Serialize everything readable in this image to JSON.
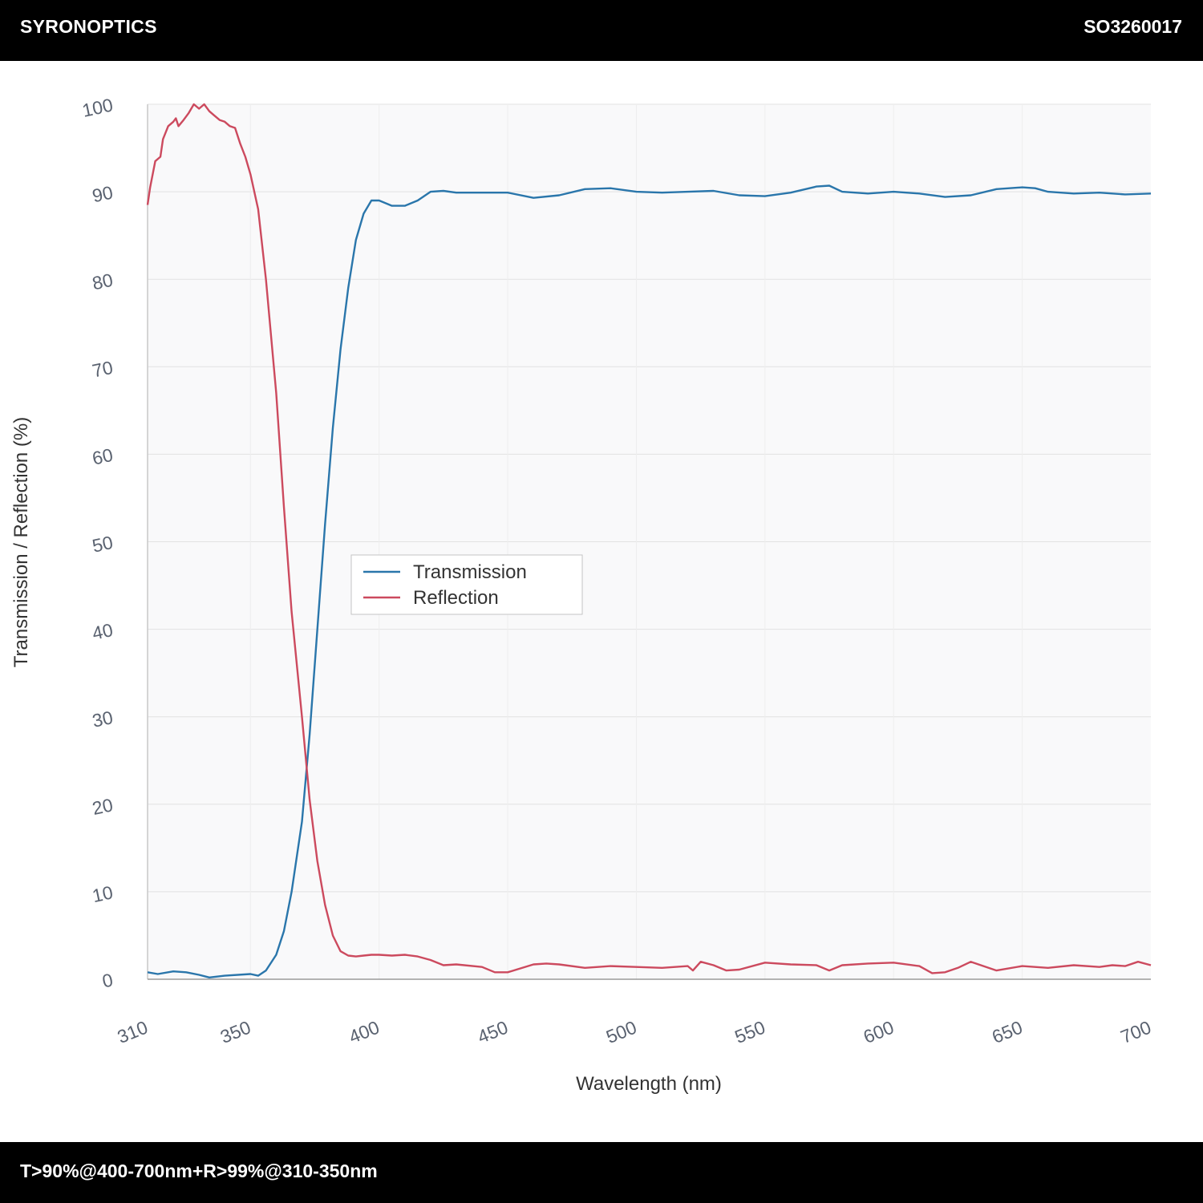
{
  "header": {
    "brand": "SYRONOPTICS",
    "part_number": "SO3260017"
  },
  "footer": {
    "spec": "T>90%@400-700nm+R>99%@310-350nm"
  },
  "chart_data": {
    "type": "line",
    "xlabel": "Wavelength (nm)",
    "ylabel": "Transmission / Reflection (%)",
    "xlim": [
      310,
      700
    ],
    "ylim": [
      0,
      100
    ],
    "xticks": [
      310,
      350,
      400,
      450,
      500,
      550,
      600,
      650,
      700
    ],
    "yticks": [
      0,
      10,
      20,
      30,
      40,
      50,
      60,
      70,
      80,
      90,
      100
    ],
    "grid": true,
    "legend_position": "center-left",
    "series": [
      {
        "name": "Transmission",
        "color": "#2a76ab",
        "x": [
          310,
          314,
          320,
          325,
          330,
          334,
          340,
          350,
          353,
          356,
          360,
          363,
          366,
          370,
          373,
          376,
          379,
          382,
          385,
          388,
          391,
          394,
          397,
          400,
          405,
          410,
          415,
          420,
          425,
          430,
          440,
          450,
          460,
          470,
          480,
          490,
          500,
          510,
          520,
          530,
          540,
          550,
          560,
          570,
          575,
          580,
          590,
          600,
          610,
          620,
          630,
          640,
          650,
          655,
          660,
          670,
          680,
          690,
          700
        ],
        "y": [
          0.8,
          0.6,
          0.9,
          0.8,
          0.5,
          0.2,
          0.4,
          0.6,
          0.4,
          1.0,
          2.8,
          5.5,
          10.0,
          18.0,
          28.0,
          40.0,
          52.0,
          63.0,
          72.0,
          79.0,
          84.5,
          87.5,
          89.0,
          89.0,
          88.4,
          88.4,
          89.0,
          90.0,
          90.1,
          89.9,
          89.9,
          89.9,
          89.3,
          89.6,
          90.3,
          90.4,
          90.0,
          89.9,
          90.0,
          90.1,
          89.6,
          89.5,
          89.9,
          90.6,
          90.7,
          90.0,
          89.8,
          90.0,
          89.8,
          89.4,
          89.6,
          90.3,
          90.5,
          90.4,
          90.0,
          89.8,
          89.9,
          89.7,
          89.8
        ]
      },
      {
        "name": "Reflection",
        "color": "#cc4a5e",
        "x": [
          310,
          311,
          313,
          315,
          316,
          318,
          320,
          321,
          322,
          324,
          326,
          328,
          330,
          332,
          334,
          336,
          338,
          340,
          342,
          344,
          346,
          348,
          350,
          353,
          356,
          360,
          363,
          366,
          370,
          373,
          376,
          379,
          382,
          385,
          388,
          391,
          394,
          397,
          400,
          405,
          410,
          415,
          420,
          425,
          430,
          440,
          445,
          450,
          460,
          465,
          470,
          480,
          490,
          500,
          510,
          520,
          522,
          525,
          530,
          535,
          540,
          550,
          560,
          570,
          575,
          580,
          590,
          600,
          610,
          615,
          620,
          625,
          630,
          640,
          650,
          660,
          670,
          680,
          685,
          690,
          695,
          700
        ],
        "y": [
          88.5,
          90.5,
          93.5,
          94.0,
          96.0,
          97.5,
          98.0,
          98.4,
          97.5,
          98.2,
          99.0,
          100.0,
          99.5,
          100.0,
          99.2,
          98.7,
          98.2,
          98.0,
          97.5,
          97.3,
          95.5,
          94.0,
          92.0,
          88.0,
          80.0,
          67.0,
          54.0,
          42.0,
          30.0,
          20.5,
          13.5,
          8.5,
          5.0,
          3.2,
          2.7,
          2.6,
          2.7,
          2.8,
          2.8,
          2.7,
          2.8,
          2.6,
          2.2,
          1.6,
          1.7,
          1.4,
          0.8,
          0.8,
          1.7,
          1.8,
          1.7,
          1.3,
          1.5,
          1.4,
          1.3,
          1.5,
          1.0,
          2.0,
          1.6,
          1.0,
          1.1,
          1.9,
          1.7,
          1.6,
          1.0,
          1.6,
          1.8,
          1.9,
          1.5,
          0.7,
          0.8,
          1.3,
          2.0,
          1.0,
          1.5,
          1.3,
          1.6,
          1.4,
          1.6,
          1.5,
          2.0,
          1.6
        ]
      }
    ]
  }
}
